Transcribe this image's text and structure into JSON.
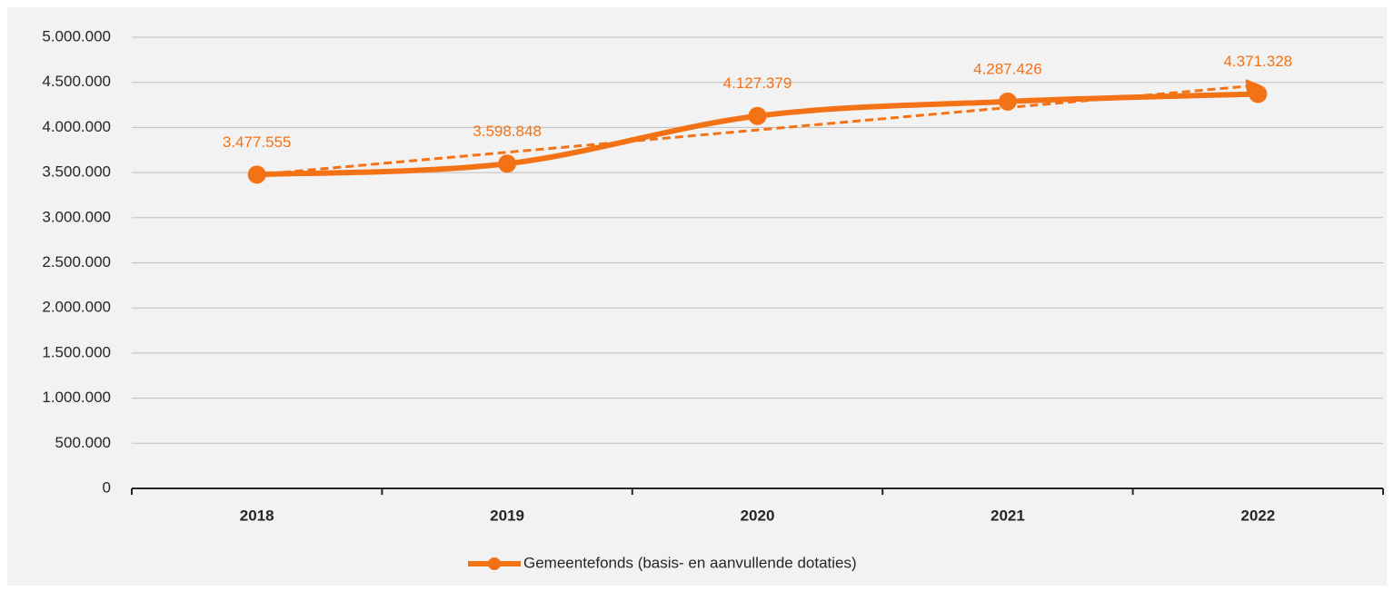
{
  "chart_data": {
    "type": "line",
    "categories": [
      "2018",
      "2019",
      "2020",
      "2021",
      "2022"
    ],
    "series": [
      {
        "name": "Gemeentefonds (basis- en aanvullende dotaties)",
        "color": "#f47216",
        "values": [
          3477555,
          3598848,
          4127379,
          4287426,
          4371328
        ],
        "value_labels": [
          "3.477.555",
          "3.598.848",
          "4.127.379",
          "4.287.426",
          "4.371.328"
        ]
      }
    ],
    "ylim": [
      0,
      5000000
    ],
    "yticks": [
      0,
      {
        "value": 500000,
        "label": "500.000"
      },
      {
        "value": 1000000,
        "label": "1.000.000"
      },
      {
        "value": 1500000,
        "label": "1.500.000"
      },
      {
        "value": 2000000,
        "label": "2.000.000"
      },
      {
        "value": 2500000,
        "label": "2.500.000"
      },
      {
        "value": 3000000,
        "label": "3.000.000"
      },
      {
        "value": 3500000,
        "label": "3.500.000"
      },
      {
        "value": 4000000,
        "label": "4.000.000"
      },
      {
        "value": 4500000,
        "label": "4.500.000"
      },
      {
        "value": 5000000,
        "label": "5.000.000"
      }
    ],
    "grid": true,
    "smooth": true,
    "trendline": "linear",
    "legend": "bottom"
  }
}
